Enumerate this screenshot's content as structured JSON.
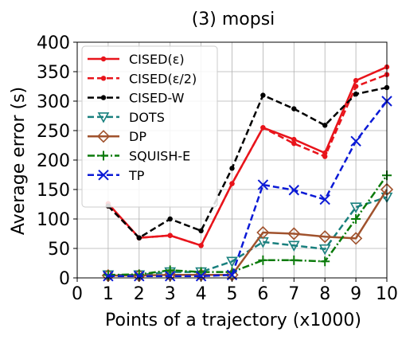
{
  "chart_data": {
    "type": "line",
    "title": "(3) mopsi",
    "xlabel": "Points of a trajectory (x1000)",
    "ylabel": "Average error (s)",
    "xlim": [
      0,
      10
    ],
    "ylim": [
      0,
      400
    ],
    "xticks": [
      "0",
      "1",
      "2",
      "3",
      "4",
      "5",
      "6",
      "7",
      "8",
      "9",
      "10"
    ],
    "yticks": [
      "0",
      "50",
      "100",
      "150",
      "200",
      "250",
      "300",
      "350",
      "400"
    ],
    "grid": true,
    "legend_position": "top-left",
    "x": [
      1,
      2,
      3,
      4,
      5,
      6,
      7,
      8,
      9,
      10
    ],
    "series": [
      {
        "name": "CISED(ε)",
        "color": "#e8141b",
        "dash": "solid",
        "marker": "dot",
        "values": [
          126,
          68,
          72,
          55,
          160,
          255,
          235,
          212,
          335,
          358
        ]
      },
      {
        "name": "CISED(ε/2)",
        "color": "#e8141b",
        "dash": "dashed",
        "marker": "dot",
        "values": [
          122,
          68,
          72,
          55,
          160,
          255,
          228,
          206,
          325,
          345
        ]
      },
      {
        "name": "CISED-W",
        "color": "#000000",
        "dash": "dashed",
        "marker": "dot",
        "values": [
          122,
          68,
          100,
          80,
          186,
          310,
          287,
          259,
          312,
          323
        ]
      },
      {
        "name": "DOTS",
        "color": "#19807e",
        "dash": "dashed",
        "marker": "triangle-down",
        "values": [
          5,
          5,
          10,
          10,
          28,
          61,
          55,
          49,
          120,
          137
        ]
      },
      {
        "name": "DP",
        "color": "#a0522d",
        "dash": "solid",
        "marker": "diamond",
        "values": [
          4,
          4,
          5,
          5,
          5,
          77,
          75,
          70,
          67,
          150
        ]
      },
      {
        "name": "SQUISH-E",
        "color": "#0a7a0a",
        "dash": "dashdot",
        "marker": "plus",
        "values": [
          5,
          6,
          13,
          10,
          10,
          30,
          30,
          28,
          100,
          174
        ]
      },
      {
        "name": "TP",
        "color": "#0b1ad6",
        "dash": "dashed",
        "marker": "x",
        "values": [
          3,
          3,
          3,
          3,
          5,
          158,
          149,
          133,
          232,
          300
        ]
      }
    ]
  }
}
